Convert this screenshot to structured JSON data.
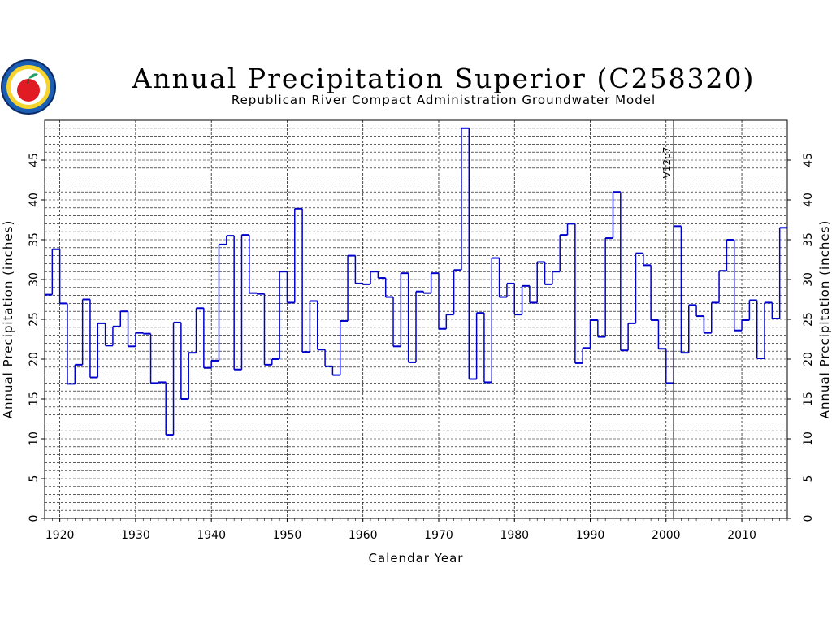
{
  "chart_data": {
    "type": "line",
    "step": true,
    "title": "Annual Precipitation Superior (C258320)",
    "subtitle": "Republican River Compact Administration Groundwater Model",
    "xlabel": "Calendar Year",
    "ylabel": "Annual Precipitation (inches)",
    "ylabel_right": "Annual Precipitation (inches)",
    "xlim": [
      1918,
      2016
    ],
    "ylim": [
      0,
      50
    ],
    "xticks": [
      1920,
      1930,
      1940,
      1950,
      1960,
      1970,
      1980,
      1990,
      2000,
      2010
    ],
    "yticks": [
      0,
      5,
      10,
      15,
      20,
      25,
      30,
      35,
      40,
      45
    ],
    "grid": true,
    "series_color": "#0000cc",
    "annotation": {
      "label": "V12p7",
      "x": 2001
    },
    "x": [
      1918,
      1919,
      1920,
      1921,
      1922,
      1923,
      1924,
      1925,
      1926,
      1927,
      1928,
      1929,
      1930,
      1931,
      1932,
      1933,
      1934,
      1935,
      1936,
      1937,
      1938,
      1939,
      1940,
      1941,
      1942,
      1943,
      1944,
      1945,
      1946,
      1947,
      1948,
      1949,
      1950,
      1951,
      1952,
      1953,
      1954,
      1955,
      1956,
      1957,
      1958,
      1959,
      1960,
      1961,
      1962,
      1963,
      1964,
      1965,
      1966,
      1967,
      1968,
      1969,
      1970,
      1971,
      1972,
      1973,
      1974,
      1975,
      1976,
      1977,
      1978,
      1979,
      1980,
      1981,
      1982,
      1983,
      1984,
      1985,
      1986,
      1987,
      1988,
      1989,
      1990,
      1991,
      1992,
      1993,
      1994,
      1995,
      1996,
      1997,
      1998,
      1999,
      2000,
      2001,
      2002,
      2003,
      2004,
      2005,
      2006,
      2007,
      2008,
      2009,
      2010,
      2011,
      2012,
      2013,
      2014,
      2015
    ],
    "values": [
      28.1,
      33.8,
      27.0,
      16.9,
      19.3,
      27.5,
      17.7,
      24.5,
      21.7,
      24.1,
      26.0,
      21.6,
      23.3,
      23.2,
      17.0,
      17.1,
      10.5,
      24.6,
      15.0,
      20.8,
      26.4,
      18.9,
      19.8,
      34.4,
      35.5,
      18.7,
      35.6,
      28.3,
      28.2,
      19.3,
      20.0,
      31.0,
      27.1,
      38.9,
      20.9,
      27.3,
      21.2,
      19.1,
      18.0,
      24.8,
      33.0,
      29.5,
      29.4,
      31.0,
      30.2,
      27.8,
      21.6,
      30.8,
      19.6,
      28.5,
      28.3,
      30.8,
      23.8,
      25.6,
      31.2,
      49.0,
      17.5,
      25.8,
      17.1,
      32.7,
      27.8,
      29.5,
      25.6,
      29.2,
      27.1,
      32.2,
      29.4,
      31.0,
      35.6,
      37.0,
      19.5,
      21.4,
      24.9,
      22.8,
      35.2,
      41.0,
      21.1,
      24.5,
      33.3,
      31.8,
      24.9,
      21.3,
      17.0,
      36.7,
      20.8,
      26.8,
      25.4,
      23.3,
      27.1,
      31.1,
      35.0,
      23.6,
      24.9,
      27.4,
      20.1,
      27.1,
      25.1,
      36.5
    ]
  }
}
